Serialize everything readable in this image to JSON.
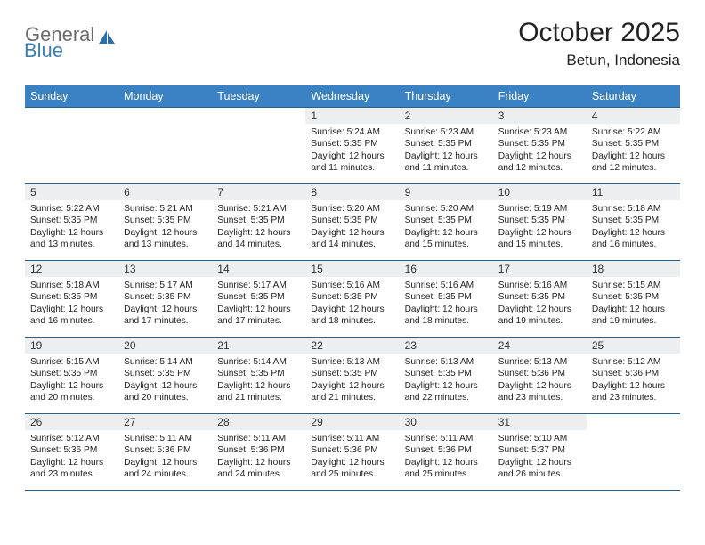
{
  "brand": {
    "part1": "General",
    "part2": "Blue"
  },
  "title": "October 2025",
  "location": "Betun, Indonesia",
  "colors": {
    "header_bg": "#3b82c4",
    "rule": "#2a5f8a",
    "numrow_bg": "#edeef0",
    "brand_gray": "#6b6b6b",
    "brand_blue": "#3b7fb8"
  },
  "fonts": {
    "title_pt": 30,
    "location_pt": 17,
    "dow_pt": 12.5,
    "daynum_pt": 12,
    "body_pt": 10.2
  },
  "dow": [
    "Sunday",
    "Monday",
    "Tuesday",
    "Wednesday",
    "Thursday",
    "Friday",
    "Saturday"
  ],
  "weeks": [
    [
      null,
      null,
      null,
      {
        "n": "1",
        "sunrise": "5:24 AM",
        "sunset": "5:35 PM",
        "daylight": "12 hours and 11 minutes."
      },
      {
        "n": "2",
        "sunrise": "5:23 AM",
        "sunset": "5:35 PM",
        "daylight": "12 hours and 11 minutes."
      },
      {
        "n": "3",
        "sunrise": "5:23 AM",
        "sunset": "5:35 PM",
        "daylight": "12 hours and 12 minutes."
      },
      {
        "n": "4",
        "sunrise": "5:22 AM",
        "sunset": "5:35 PM",
        "daylight": "12 hours and 12 minutes."
      }
    ],
    [
      {
        "n": "5",
        "sunrise": "5:22 AM",
        "sunset": "5:35 PM",
        "daylight": "12 hours and 13 minutes."
      },
      {
        "n": "6",
        "sunrise": "5:21 AM",
        "sunset": "5:35 PM",
        "daylight": "12 hours and 13 minutes."
      },
      {
        "n": "7",
        "sunrise": "5:21 AM",
        "sunset": "5:35 PM",
        "daylight": "12 hours and 14 minutes."
      },
      {
        "n": "8",
        "sunrise": "5:20 AM",
        "sunset": "5:35 PM",
        "daylight": "12 hours and 14 minutes."
      },
      {
        "n": "9",
        "sunrise": "5:20 AM",
        "sunset": "5:35 PM",
        "daylight": "12 hours and 15 minutes."
      },
      {
        "n": "10",
        "sunrise": "5:19 AM",
        "sunset": "5:35 PM",
        "daylight": "12 hours and 15 minutes."
      },
      {
        "n": "11",
        "sunrise": "5:18 AM",
        "sunset": "5:35 PM",
        "daylight": "12 hours and 16 minutes."
      }
    ],
    [
      {
        "n": "12",
        "sunrise": "5:18 AM",
        "sunset": "5:35 PM",
        "daylight": "12 hours and 16 minutes."
      },
      {
        "n": "13",
        "sunrise": "5:17 AM",
        "sunset": "5:35 PM",
        "daylight": "12 hours and 17 minutes."
      },
      {
        "n": "14",
        "sunrise": "5:17 AM",
        "sunset": "5:35 PM",
        "daylight": "12 hours and 17 minutes."
      },
      {
        "n": "15",
        "sunrise": "5:16 AM",
        "sunset": "5:35 PM",
        "daylight": "12 hours and 18 minutes."
      },
      {
        "n": "16",
        "sunrise": "5:16 AM",
        "sunset": "5:35 PM",
        "daylight": "12 hours and 18 minutes."
      },
      {
        "n": "17",
        "sunrise": "5:16 AM",
        "sunset": "5:35 PM",
        "daylight": "12 hours and 19 minutes."
      },
      {
        "n": "18",
        "sunrise": "5:15 AM",
        "sunset": "5:35 PM",
        "daylight": "12 hours and 19 minutes."
      }
    ],
    [
      {
        "n": "19",
        "sunrise": "5:15 AM",
        "sunset": "5:35 PM",
        "daylight": "12 hours and 20 minutes."
      },
      {
        "n": "20",
        "sunrise": "5:14 AM",
        "sunset": "5:35 PM",
        "daylight": "12 hours and 20 minutes."
      },
      {
        "n": "21",
        "sunrise": "5:14 AM",
        "sunset": "5:35 PM",
        "daylight": "12 hours and 21 minutes."
      },
      {
        "n": "22",
        "sunrise": "5:13 AM",
        "sunset": "5:35 PM",
        "daylight": "12 hours and 21 minutes."
      },
      {
        "n": "23",
        "sunrise": "5:13 AM",
        "sunset": "5:35 PM",
        "daylight": "12 hours and 22 minutes."
      },
      {
        "n": "24",
        "sunrise": "5:13 AM",
        "sunset": "5:36 PM",
        "daylight": "12 hours and 23 minutes."
      },
      {
        "n": "25",
        "sunrise": "5:12 AM",
        "sunset": "5:36 PM",
        "daylight": "12 hours and 23 minutes."
      }
    ],
    [
      {
        "n": "26",
        "sunrise": "5:12 AM",
        "sunset": "5:36 PM",
        "daylight": "12 hours and 23 minutes."
      },
      {
        "n": "27",
        "sunrise": "5:11 AM",
        "sunset": "5:36 PM",
        "daylight": "12 hours and 24 minutes."
      },
      {
        "n": "28",
        "sunrise": "5:11 AM",
        "sunset": "5:36 PM",
        "daylight": "12 hours and 24 minutes."
      },
      {
        "n": "29",
        "sunrise": "5:11 AM",
        "sunset": "5:36 PM",
        "daylight": "12 hours and 25 minutes."
      },
      {
        "n": "30",
        "sunrise": "5:11 AM",
        "sunset": "5:36 PM",
        "daylight": "12 hours and 25 minutes."
      },
      {
        "n": "31",
        "sunrise": "5:10 AM",
        "sunset": "5:37 PM",
        "daylight": "12 hours and 26 minutes."
      },
      null
    ]
  ],
  "labels": {
    "sunrise": "Sunrise:",
    "sunset": "Sunset:",
    "daylight": "Daylight:"
  }
}
